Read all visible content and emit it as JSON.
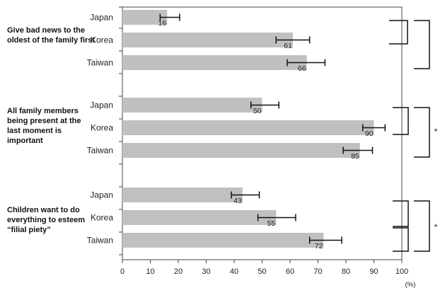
{
  "chart_data": {
    "type": "bar",
    "orientation": "horizontal",
    "unit": "(%)",
    "xlim": [
      0,
      100
    ],
    "xticks": [
      0,
      10,
      20,
      30,
      40,
      50,
      60,
      70,
      80,
      90,
      100
    ],
    "grid": false,
    "groups": [
      {
        "question": "Give bad news to the oldest of the family first",
        "significance": "",
        "bars": [
          {
            "country": "Japan",
            "value": 16,
            "err_low": 13.5,
            "err_high": 20.5
          },
          {
            "country": "Korea",
            "value": 61,
            "err_low": 55,
            "err_high": 67
          },
          {
            "country": "Taiwan",
            "value": 66,
            "err_low": 59,
            "err_high": 72.5
          }
        ]
      },
      {
        "question": "All family members being present at the last moment is important",
        "significance": "*",
        "bars": [
          {
            "country": "Japan",
            "value": 50,
            "err_low": 46,
            "err_high": 56
          },
          {
            "country": "Korea",
            "value": 90,
            "err_low": 86,
            "err_high": 94
          },
          {
            "country": "Taiwan",
            "value": 85,
            "err_low": 79,
            "err_high": 89.5
          }
        ]
      },
      {
        "question": "Children want to do everything to esteem “filial piety”",
        "significance": "*",
        "bars": [
          {
            "country": "Japan",
            "value": 43,
            "err_low": 39,
            "err_high": 49
          },
          {
            "country": "Korea",
            "value": 55,
            "err_low": 48.5,
            "err_high": 62
          },
          {
            "country": "Taiwan",
            "value": 72,
            "err_low": 67,
            "err_high": 78.5
          }
        ]
      }
    ]
  }
}
